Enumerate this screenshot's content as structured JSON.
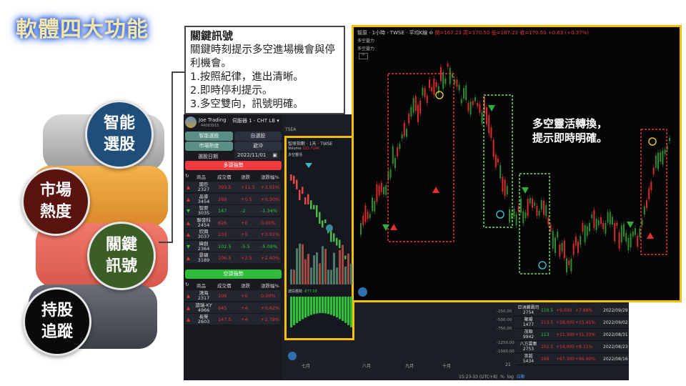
{
  "slide": {
    "title": "軟體四大功能"
  },
  "features": [
    {
      "label": "智能選股"
    },
    {
      "label": "市場熱度"
    },
    {
      "label": "關鍵訊號"
    },
    {
      "label": "持股追蹤"
    }
  ],
  "callout": {
    "heading": "關鍵訊號",
    "body": "關鍵時刻提示多空進場機會與停利機會。",
    "points": [
      "1.按照紀律，進出清晰。",
      "2.即時停利提示。",
      "3.多空雙向，訊號明確。"
    ]
  },
  "app": {
    "user": {
      "name": "Joe Trading",
      "id": "44083915"
    },
    "server": "伺服器 1 - CHT LB",
    "buttons": [
      "智能選股",
      "自選股",
      "市場熱度",
      "避沖"
    ],
    "date_label": "選股日期",
    "date_value": "2022/11/01",
    "long_title": "多頭強勢",
    "short_title": "空頭強勢",
    "columns": [
      "商品",
      "成交價",
      "漲跌",
      "漲跌幅%"
    ],
    "long_rows": [
      {
        "name": "國巨",
        "code": "2327",
        "price": "393.5",
        "chg": "+11.5",
        "pct": "+3.01%",
        "dir": "up"
      },
      {
        "name": "晶睿",
        "code": "3454",
        "price": "169",
        "chg": "+0.5",
        "pct": "+0.30%",
        "dir": "up"
      },
      {
        "name": "智原",
        "code": "3035",
        "price": "147",
        "chg": "-2",
        "pct": "-1.34%",
        "dir": "down"
      },
      {
        "name": "聯發科",
        "code": "2454",
        "price": "626",
        "chg": "+0",
        "pct": "0.00%",
        "dir": "up"
      },
      {
        "name": "欣興",
        "code": "3037",
        "price": "133",
        "chg": "+5",
        "pct": "+3.91%",
        "dir": "up"
      },
      {
        "name": "緯創",
        "code": "2364",
        "price": "102.5",
        "chg": "-5.5",
        "pct": "-5.09%",
        "dir": "down"
      },
      {
        "name": "景碩",
        "code": "3189",
        "price": "106.5",
        "chg": "+2.5",
        "pct": "+2.40%",
        "dir": "up"
      }
    ],
    "short_rows": [
      {
        "name": "鴻海",
        "code": "2317",
        "price": "106",
        "chg": "+0",
        "pct": "0.00%",
        "dir": "up"
      },
      {
        "name": "譜瑞-KY",
        "code": "4966",
        "price": "645",
        "chg": "+4",
        "pct": "+0.62%",
        "dir": "up"
      },
      {
        "name": "長榮",
        "code": "2603",
        "price": "147.5",
        "chg": "+4",
        "pct": "+2.79%",
        "dir": "up"
      }
    ],
    "mid_chart": {
      "tab": "TSEA",
      "symbol": "智原指數 · 1天 · TWSE",
      "volume_label": "Volume",
      "volume_value": "222.714K",
      "indicator": "多空靈活",
      "osc_label": "波段趨勢",
      "osc_value": "-877.58"
    },
    "axis_right": [
      "-250.00",
      "-500.00",
      "-750.00",
      "-1250.00",
      "-1500.00"
    ],
    "axis_months": [
      "七月",
      "八月",
      "九月",
      "十月",
      "21"
    ],
    "status": {
      "time": "15:23:33 (UTC+8)",
      "pct": "%",
      "log": "log",
      "auto": "自動"
    },
    "signals_table": [
      {
        "name": "亞洲藏壽司",
        "code": "2754",
        "price": "110.5",
        "amt": "+9,000",
        "pct": "+7.88%",
        "date": "2022/09/29",
        "color": "green"
      },
      {
        "name": "聚陽",
        "code": "1477",
        "price": "213.5",
        "amt": "+28,000",
        "pct": "+15.41%",
        "date": "2022/09/02",
        "color": "red"
      },
      {
        "name": "茂順",
        "code": "9942",
        "price": "113",
        "amt": "+11,300",
        "pct": "+11.33%",
        "date": "2022/08/31",
        "color": "green"
      },
      {
        "name": "八方雲集",
        "code": "2753",
        "price": "102.5",
        "amt": "+14,000",
        "pct": "+8.31%",
        "date": "2022/08/23",
        "color": "red"
      },
      {
        "name": "崇越",
        "code": "5434",
        "price": "169",
        "amt": "+67,300",
        "pct": "+66.90%",
        "date": "2022/08/16",
        "color": "red"
      }
    ]
  },
  "big_chart": {
    "symbol": "智原 · 1小時 · TWSE · 平均K線",
    "ohlc": "開=167.23 高=170.50 低=167.23 收=170.50 +0.63 (+0.37%)",
    "labels": [
      "多空靈力",
      "多空靈力"
    ],
    "caption": [
      "多空靈活轉換，",
      "提示即時明確。"
    ]
  },
  "colors": {
    "accent": "#f5c000",
    "up": "#e8333a",
    "down": "#2ecc40"
  }
}
